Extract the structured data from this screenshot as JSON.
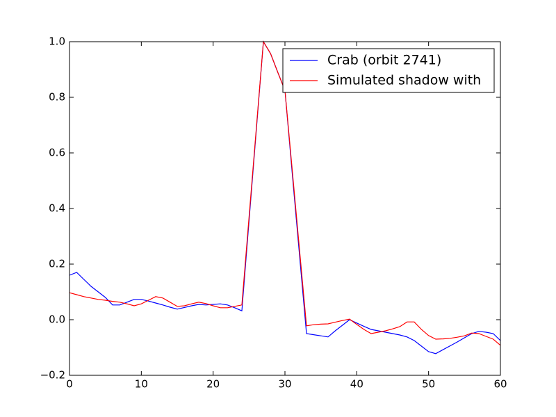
{
  "chart_data": {
    "type": "line",
    "x": [
      0,
      1,
      2,
      3,
      4,
      5,
      6,
      7,
      8,
      9,
      10,
      11,
      12,
      13,
      14,
      15,
      16,
      17,
      18,
      19,
      20,
      21,
      22,
      23,
      24,
      25,
      26,
      27,
      28,
      29,
      30,
      31,
      32,
      33,
      34,
      35,
      36,
      37,
      38,
      39,
      40,
      41,
      42,
      43,
      44,
      45,
      46,
      47,
      48,
      49,
      50,
      51,
      52,
      53,
      54,
      55,
      56,
      57,
      58,
      59,
      60
    ],
    "series": [
      {
        "name": "Crab (orbit 2741)",
        "color": "#0000ff",
        "values": [
          0.16,
          0.17,
          0.145,
          0.12,
          0.1,
          0.08,
          0.053,
          0.053,
          0.063,
          0.073,
          0.073,
          0.067,
          0.06,
          0.053,
          0.045,
          0.038,
          0.044,
          0.05,
          0.055,
          0.053,
          0.055,
          0.057,
          0.053,
          0.043,
          0.032,
          0.355,
          0.678,
          1.0,
          0.957,
          0.89,
          0.825,
          0.53,
          0.24,
          -0.05,
          -0.054,
          -0.058,
          -0.062,
          -0.04,
          -0.02,
          0.0,
          -0.012,
          -0.024,
          -0.035,
          -0.04,
          -0.045,
          -0.05,
          -0.055,
          -0.062,
          -0.075,
          -0.095,
          -0.115,
          -0.122,
          -0.108,
          -0.094,
          -0.08,
          -0.065,
          -0.05,
          -0.042,
          -0.045,
          -0.05,
          -0.075
        ]
      },
      {
        "name": "Simulated shadow with",
        "color": "#ff0000",
        "values": [
          0.097,
          0.09,
          0.083,
          0.078,
          0.073,
          0.07,
          0.066,
          0.063,
          0.057,
          0.05,
          0.057,
          0.07,
          0.083,
          0.078,
          0.063,
          0.048,
          0.05,
          0.057,
          0.063,
          0.058,
          0.05,
          0.043,
          0.043,
          0.048,
          0.053,
          0.369,
          0.685,
          1.0,
          0.957,
          0.89,
          0.825,
          0.543,
          0.26,
          -0.022,
          -0.018,
          -0.016,
          -0.015,
          -0.009,
          -0.003,
          0.002,
          -0.017,
          -0.035,
          -0.05,
          -0.045,
          -0.04,
          -0.033,
          -0.025,
          -0.008,
          -0.008,
          -0.035,
          -0.057,
          -0.07,
          -0.069,
          -0.067,
          -0.063,
          -0.058,
          -0.048,
          -0.05,
          -0.06,
          -0.07,
          -0.092
        ]
      }
    ],
    "xlim": [
      0,
      60
    ],
    "xticks": [
      0,
      10,
      20,
      30,
      40,
      50,
      60
    ],
    "ylim": [
      -0.2,
      1.0
    ],
    "yticks": [
      {
        "value": -0.2,
        "label": "−0.2"
      },
      {
        "value": 0,
        "label": "0.0"
      },
      {
        "value": 0.2,
        "label": "0.2"
      },
      {
        "value": 0.4,
        "label": "0.4"
      },
      {
        "value": 0.6,
        "label": "0.6"
      },
      {
        "value": 0.8,
        "label": "0.8"
      },
      {
        "value": 1.0,
        "label": "1.0"
      }
    ],
    "legend": "upper right"
  }
}
